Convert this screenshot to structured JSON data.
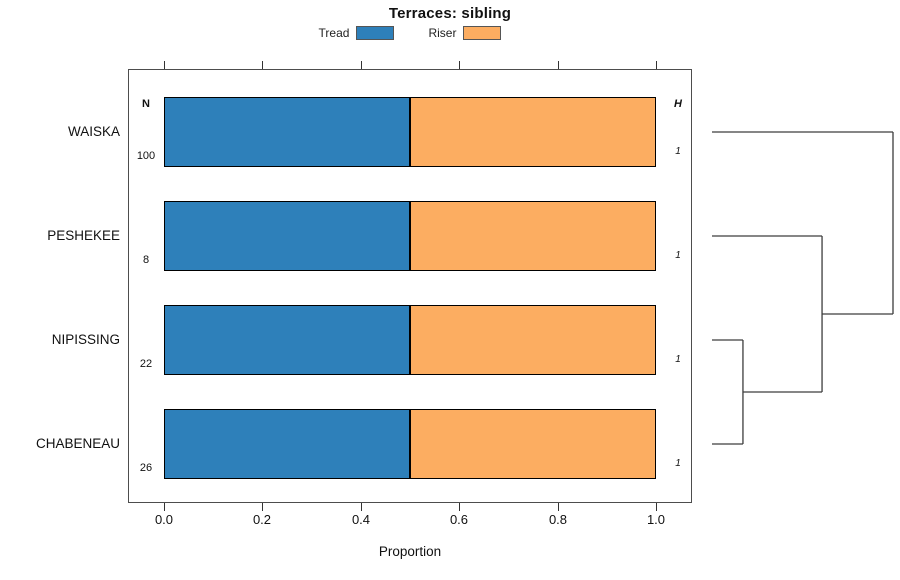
{
  "title": "Terraces: sibling",
  "legend": [
    {
      "label": "Tread",
      "color": "#2E80BA"
    },
    {
      "label": "Riser",
      "color": "#FCAD61"
    }
  ],
  "axis": {
    "xlabel": "Proportion",
    "x_ticks": [
      "0.0",
      "0.2",
      "0.4",
      "0.6",
      "0.8",
      "1.0"
    ]
  },
  "columns": {
    "n_header": "N",
    "h_header": "H"
  },
  "chart_data": {
    "type": "bar",
    "orientation": "horizontal",
    "stacked": true,
    "title": "Terraces: sibling",
    "xlabel": "Proportion",
    "xlim": [
      0,
      1
    ],
    "x_tick_values": [
      0.0,
      0.2,
      0.4,
      0.6,
      0.8,
      1.0
    ],
    "categories": [
      "WAISKA",
      "PESHEKEE",
      "NIPISSING",
      "CHABENEAU"
    ],
    "series": [
      {
        "name": "Tread",
        "color": "#2E80BA",
        "values": [
          0.5,
          0.5,
          0.5,
          0.5
        ]
      },
      {
        "name": "Riser",
        "color": "#FCAD61",
        "values": [
          0.5,
          0.5,
          0.5,
          0.5
        ]
      }
    ],
    "n_values": [
      "100",
      "8",
      "22",
      "26"
    ],
    "h_values": [
      "1",
      "1",
      "1",
      "1"
    ],
    "dendrogram": {
      "line_color": "#3d3d3d",
      "merges": [
        {
          "children": [
            "NIPISSING",
            "CHABENEAU"
          ],
          "height": 0.171
        },
        {
          "children": [
            "PESHEKEE",
            "#0"
          ],
          "height": 0.608
        },
        {
          "children": [
            "WAISKA",
            "#1"
          ],
          "height": 1.0
        }
      ]
    }
  }
}
